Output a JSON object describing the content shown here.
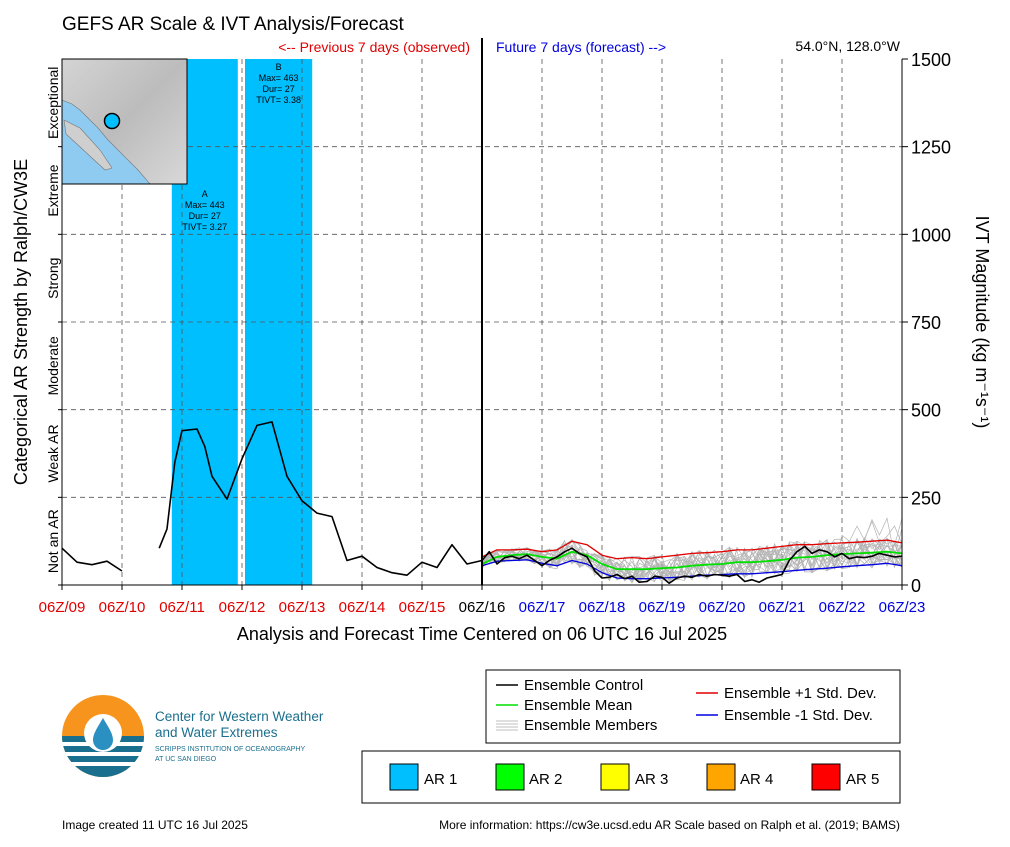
{
  "chart_data": {
    "type": "line",
    "title": "GEFS AR Scale & IVT Analysis/Forecast",
    "location": "54.0°N, 128.0°W",
    "prev_label": "<-- Previous 7 days (observed)",
    "future_label": "Future 7 days (forecast) -->",
    "xlabel": "Analysis and Forecast Time Centered on 06 UTC 16 Jul 2025",
    "ylabel_right": "IVT Magnitude (kg m⁻¹s⁻¹)",
    "ylabel_left": "Categorical AR Strength by Ralph/CW3E",
    "x_ticks": [
      "06Z/09",
      "06Z/10",
      "06Z/11",
      "06Z/12",
      "06Z/13",
      "06Z/14",
      "06Z/15",
      "06Z/16",
      "06Z/17",
      "06Z/18",
      "06Z/19",
      "06Z/20",
      "06Z/21",
      "06Z/22",
      "06Z/23"
    ],
    "x_tick_colors": [
      "#e00000",
      "#e00000",
      "#e00000",
      "#e00000",
      "#e00000",
      "#e00000",
      "#e00000",
      "#000000",
      "#0000e0",
      "#0000e0",
      "#0000e0",
      "#0000e0",
      "#0000e0",
      "#0000e0",
      "#0000e0"
    ],
    "y_ticks": [
      0,
      250,
      500,
      750,
      1000,
      1250,
      1500
    ],
    "ylim": [
      0,
      1500
    ],
    "xlim_days": [
      9,
      23
    ],
    "categories": [
      "Not an AR",
      "Weak AR",
      "Moderate",
      "Strong",
      "Extreme",
      "Exceptional"
    ],
    "category_bounds": [
      0,
      250,
      500,
      750,
      1000,
      1250,
      1500
    ],
    "ar_events": [
      {
        "start": 10.83,
        "end": 11.93,
        "label": "A",
        "max": "Max= 443",
        "dur": "Dur= 27",
        "tivt": "TIVT= 3.27"
      },
      {
        "start": 12.05,
        "end": 13.17,
        "label": "B",
        "max": "Max= 463",
        "dur": "Dur= 27",
        "tivt": "TIVT= 3.38"
      }
    ],
    "series": [
      {
        "name": "Ensemble Control",
        "color": "#000000",
        "segments": [
          {
            "x": [
              9.0,
              9.25,
              9.5,
              9.75,
              10.0
            ],
            "y": [
              105,
              65,
              58,
              68,
              40
            ]
          },
          {
            "x": [
              10.62,
              10.75,
              10.88,
              11.0,
              11.25,
              11.38,
              11.5,
              11.75,
              12.0,
              12.25,
              12.5,
              12.75,
              13.0,
              13.25,
              13.5,
              13.75,
              14.0,
              14.25,
              14.5,
              14.75,
              15.0,
              15.25,
              15.5,
              15.75,
              16.0,
              16.12,
              16.25,
              16.38,
              16.5,
              16.62,
              16.75,
              16.88,
              17.0,
              17.12,
              17.25,
              17.38,
              17.5,
              17.62,
              17.75,
              17.88,
              18.0,
              18.12,
              18.25,
              18.38,
              18.5,
              18.62,
              18.75,
              18.88,
              19.0,
              19.12,
              19.25,
              19.38,
              19.5,
              19.62,
              19.75,
              19.88,
              20.0,
              20.12,
              20.25,
              20.38,
              20.5,
              20.62,
              20.75,
              20.88,
              21.0,
              21.12,
              21.25,
              21.38,
              21.5,
              21.62,
              21.75,
              21.88,
              22.0,
              22.12,
              22.25,
              22.38,
              22.5,
              22.62,
              22.75,
              22.88,
              23.0
            ],
            "y": [
              105,
              160,
              350,
              440,
              445,
              395,
              310,
              245,
              360,
              455,
              465,
              310,
              240,
              205,
              195,
              70,
              82,
              50,
              35,
              28,
              65,
              50,
              115,
              60,
              70,
              95,
              60,
              78,
              82,
              75,
              85,
              70,
              55,
              70,
              80,
              95,
              105,
              90,
              80,
              40,
              20,
              22,
              30,
              18,
              25,
              8,
              10,
              25,
              22,
              5,
              20,
              25,
              22,
              30,
              25,
              30,
              28,
              25,
              30,
              10,
              15,
              8,
              20,
              25,
              30,
              70,
              95,
              110,
              90,
              100,
              95,
              80,
              90,
              75,
              80,
              78,
              82,
              90,
              85,
              80,
              82
            ]
          }
        ]
      },
      {
        "name": "Ensemble Mean",
        "color": "#00e000",
        "x": [
          16.0,
          16.25,
          16.5,
          16.75,
          17.0,
          17.25,
          17.5,
          17.75,
          18.0,
          18.25,
          18.5,
          18.75,
          19.0,
          19.25,
          19.5,
          19.75,
          20.0,
          20.25,
          20.5,
          20.75,
          21.0,
          21.25,
          21.5,
          21.75,
          22.0,
          22.25,
          22.5,
          22.75,
          23.0
        ],
        "y": [
          60,
          80,
          85,
          88,
          80,
          75,
          95,
          85,
          60,
          45,
          45,
          45,
          48,
          50,
          55,
          58,
          60,
          65,
          65,
          68,
          72,
          78,
          80,
          85,
          88,
          90,
          92,
          95,
          90
        ]
      },
      {
        "name": "Ensemble +1 Std. Dev.",
        "color": "#e00000",
        "x": [
          16.0,
          16.25,
          16.5,
          16.75,
          17.0,
          17.25,
          17.5,
          17.75,
          18.0,
          18.25,
          18.5,
          18.75,
          19.0,
          19.25,
          19.5,
          19.75,
          20.0,
          20.25,
          20.5,
          20.75,
          21.0,
          21.25,
          21.5,
          21.75,
          22.0,
          22.25,
          22.5,
          22.75,
          23.0
        ],
        "y": [
          80,
          100,
          100,
          102,
          95,
          100,
          125,
          115,
          85,
          75,
          78,
          75,
          80,
          85,
          90,
          92,
          95,
          100,
          100,
          105,
          110,
          115,
          115,
          118,
          120,
          122,
          125,
          128,
          120
        ]
      },
      {
        "name": "Ensemble -1 Std. Dev.",
        "color": "#0000e0",
        "x": [
          16.0,
          16.25,
          16.5,
          16.75,
          17.0,
          17.25,
          17.5,
          17.75,
          18.0,
          18.25,
          18.5,
          18.75,
          19.0,
          19.25,
          19.5,
          19.75,
          20.0,
          20.25,
          20.5,
          20.75,
          21.0,
          21.25,
          21.5,
          21.75,
          22.0,
          22.25,
          22.5,
          22.75,
          23.0
        ],
        "y": [
          55,
          68,
          70,
          72,
          62,
          55,
          70,
          60,
          35,
          20,
          18,
          18,
          20,
          22,
          25,
          28,
          30,
          32,
          32,
          35,
          38,
          42,
          45,
          48,
          52,
          55,
          58,
          62,
          55
        ]
      }
    ],
    "members_note": "Ensemble Members",
    "legend_entries": [
      {
        "name": "Ensemble Control",
        "color": "#000000"
      },
      {
        "name": "Ensemble Mean",
        "color": "#00e000"
      },
      {
        "name": "Ensemble Members",
        "color": "#aaaaaa"
      },
      {
        "name": "Ensemble +1 Std. Dev.",
        "color": "#e00000"
      },
      {
        "name": "Ensemble -1 Std. Dev.",
        "color": "#0000e0"
      }
    ],
    "ar_scale_legend": [
      {
        "name": "AR 1",
        "color": "#00bfff"
      },
      {
        "name": "AR 2",
        "color": "#00ff00"
      },
      {
        "name": "AR 3",
        "color": "#ffff00"
      },
      {
        "name": "AR 4",
        "color": "#ffa500"
      },
      {
        "name": "AR 5",
        "color": "#ff0000"
      }
    ]
  },
  "footer": {
    "created": "Image created 11 UTC 16 Jul 2025",
    "more_info": "More information: https://cw3e.ucsd.edu AR Scale based on Ralph et al. (2019; BAMS)"
  },
  "logo": {
    "line1": "Center for Western Weather",
    "line2": "and Water Extremes",
    "sub1": "SCRIPPS INSTITUTION OF OCEANOGRAPHY",
    "sub2": "AT UC SAN DIEGO"
  }
}
